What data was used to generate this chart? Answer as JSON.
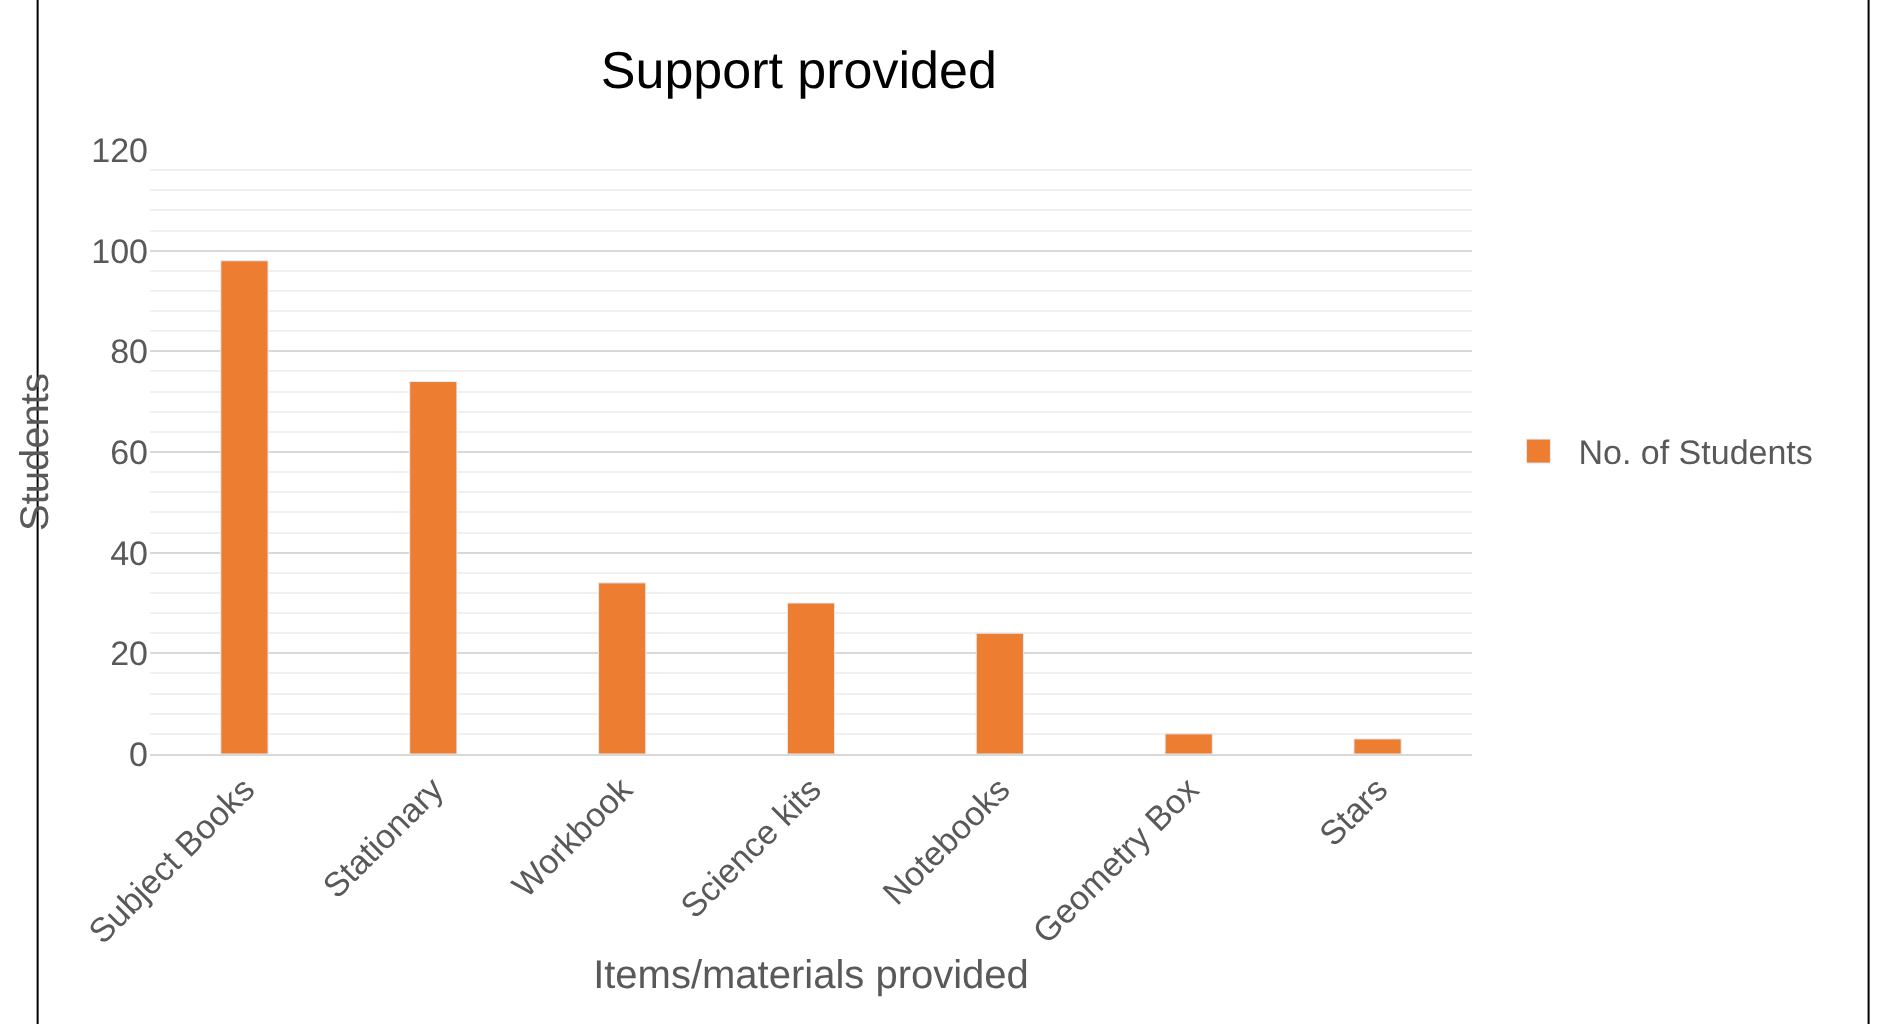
{
  "chart_data": {
    "type": "bar",
    "title": "Support provided",
    "xlabel": "Items/materials provided",
    "ylabel": "Students",
    "categories": [
      "Subject Books",
      "Stationary",
      "Workbook",
      "Science kits",
      "Notebooks",
      "Geometry Box",
      "Stars"
    ],
    "series": [
      {
        "name": "No. of Students",
        "color": "#ed7d31",
        "values": [
          98,
          74,
          34,
          30,
          24,
          4,
          3
        ]
      }
    ],
    "ylim": [
      0,
      120
    ],
    "yticks": [
      0,
      20,
      40,
      60,
      80,
      100,
      120
    ],
    "grid": "y",
    "legend": "right"
  }
}
